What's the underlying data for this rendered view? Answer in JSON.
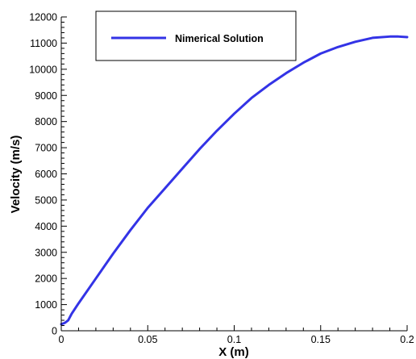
{
  "chart_data": {
    "type": "line",
    "xlabel": "X (m)",
    "ylabel": "Velocity (m/s)",
    "xlim": [
      0,
      0.2
    ],
    "ylim": [
      0,
      12000
    ],
    "x_ticks": [
      "0",
      "0.05",
      "0.1",
      "0.15",
      "0.2"
    ],
    "y_ticks": [
      "0",
      "1000",
      "2000",
      "3000",
      "4000",
      "5000",
      "6000",
      "7000",
      "8000",
      "9000",
      "10000",
      "11000",
      "12000"
    ],
    "grid": false,
    "legend": "top-left",
    "series": [
      {
        "name": "Nimerical Solution",
        "color": "#3333e6",
        "x": [
          0,
          0.002,
          0.004,
          0.006,
          0.01,
          0.02,
          0.03,
          0.04,
          0.05,
          0.06,
          0.07,
          0.08,
          0.09,
          0.1,
          0.11,
          0.12,
          0.13,
          0.14,
          0.15,
          0.16,
          0.17,
          0.18,
          0.19,
          0.195,
          0.2
        ],
        "y": [
          250,
          300,
          400,
          650,
          1050,
          2000,
          2950,
          3850,
          4700,
          5450,
          6200,
          6950,
          7650,
          8300,
          8900,
          9400,
          9850,
          10250,
          10600,
          10850,
          11050,
          11200,
          11250,
          11250,
          11230
        ]
      }
    ]
  }
}
